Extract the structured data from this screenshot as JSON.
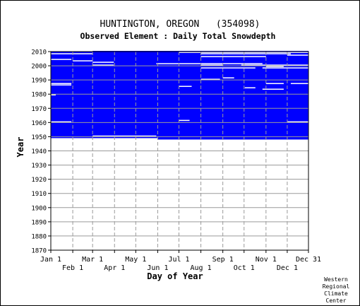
{
  "chart_data": {
    "type": "heatmap",
    "title": "HUNTINGTON, OREGON   (354098)",
    "subtitle": "Observed Element : Daily Total Snowdepth",
    "xlabel": "Day of Year",
    "ylabel": "Year",
    "x_ticks_top": [
      "Jan 1",
      "Mar 1",
      "May 1",
      "Jul 1",
      "Sep 1",
      "Nov 1",
      "Dec 31"
    ],
    "x_ticks_bottom": [
      "Feb 1",
      "Apr 1",
      "Jun 1",
      "Aug 1",
      "Oct 1",
      "Dec 1"
    ],
    "x_tick_days": [
      1,
      32,
      60,
      91,
      121,
      152,
      182,
      213,
      244,
      274,
      305,
      335,
      365
    ],
    "y_ticks": [
      "2010",
      "2000",
      "1990",
      "1980",
      "1970",
      "1960",
      "1950",
      "1940",
      "1930",
      "1920",
      "1910",
      "1900",
      "1890",
      "1880",
      "1870"
    ],
    "ylim": [
      1870,
      2010
    ],
    "xlim": [
      1,
      365
    ],
    "grid": true,
    "data_color": "#0000ff",
    "data_coverage": {
      "first_year": 1948,
      "last_year": 2010,
      "first_year_start_day": 152,
      "description_missing": "white cells mark days with no observation"
    },
    "missing_segments": [
      {
        "year": 2010,
        "start_day": 1,
        "end_day": 60
      },
      {
        "year": 2009,
        "start_day": 182,
        "end_day": 365
      },
      {
        "year": 2008,
        "start_day": 1,
        "end_day": 60
      },
      {
        "year": 2008,
        "start_day": 213,
        "end_day": 340
      },
      {
        "year": 2007,
        "start_day": 335,
        "end_day": 365
      },
      {
        "year": 2006,
        "start_day": 213,
        "end_day": 305
      },
      {
        "year": 2004,
        "start_day": 1,
        "end_day": 30
      },
      {
        "year": 2003,
        "start_day": 32,
        "end_day": 60
      },
      {
        "year": 2002,
        "start_day": 60,
        "end_day": 90
      },
      {
        "year": 2001,
        "start_day": 150,
        "end_day": 300
      },
      {
        "year": 2000,
        "start_day": 60,
        "end_day": 90
      },
      {
        "year": 2000,
        "start_day": 213,
        "end_day": 244
      },
      {
        "year": 2000,
        "start_day": 270,
        "end_day": 365
      },
      {
        "year": 1999,
        "start_day": 305,
        "end_day": 330
      },
      {
        "year": 1998,
        "start_day": 213,
        "end_day": 290
      },
      {
        "year": 1998,
        "start_day": 300,
        "end_day": 365
      },
      {
        "year": 1991,
        "start_day": 244,
        "end_day": 260
      },
      {
        "year": 1990,
        "start_day": 213,
        "end_day": 240
      },
      {
        "year": 1987,
        "start_day": 1,
        "end_day": 30
      },
      {
        "year": 1987,
        "start_day": 305,
        "end_day": 330
      },
      {
        "year": 1987,
        "start_day": 340,
        "end_day": 365
      },
      {
        "year": 1986,
        "start_day": 1,
        "end_day": 30
      },
      {
        "year": 1985,
        "start_day": 182,
        "end_day": 200
      },
      {
        "year": 1984,
        "start_day": 275,
        "end_day": 290
      },
      {
        "year": 1983,
        "start_day": 300,
        "end_day": 330
      },
      {
        "year": 1979,
        "start_day": 1,
        "end_day": 8
      },
      {
        "year": 1961,
        "start_day": 182,
        "end_day": 197
      },
      {
        "year": 1960,
        "start_day": 1,
        "end_day": 30
      },
      {
        "year": 1960,
        "start_day": 335,
        "end_day": 365
      },
      {
        "year": 1950,
        "start_day": 60,
        "end_day": 150
      }
    ]
  },
  "credit": [
    "Western",
    "Regional",
    "Climate",
    "Center"
  ]
}
